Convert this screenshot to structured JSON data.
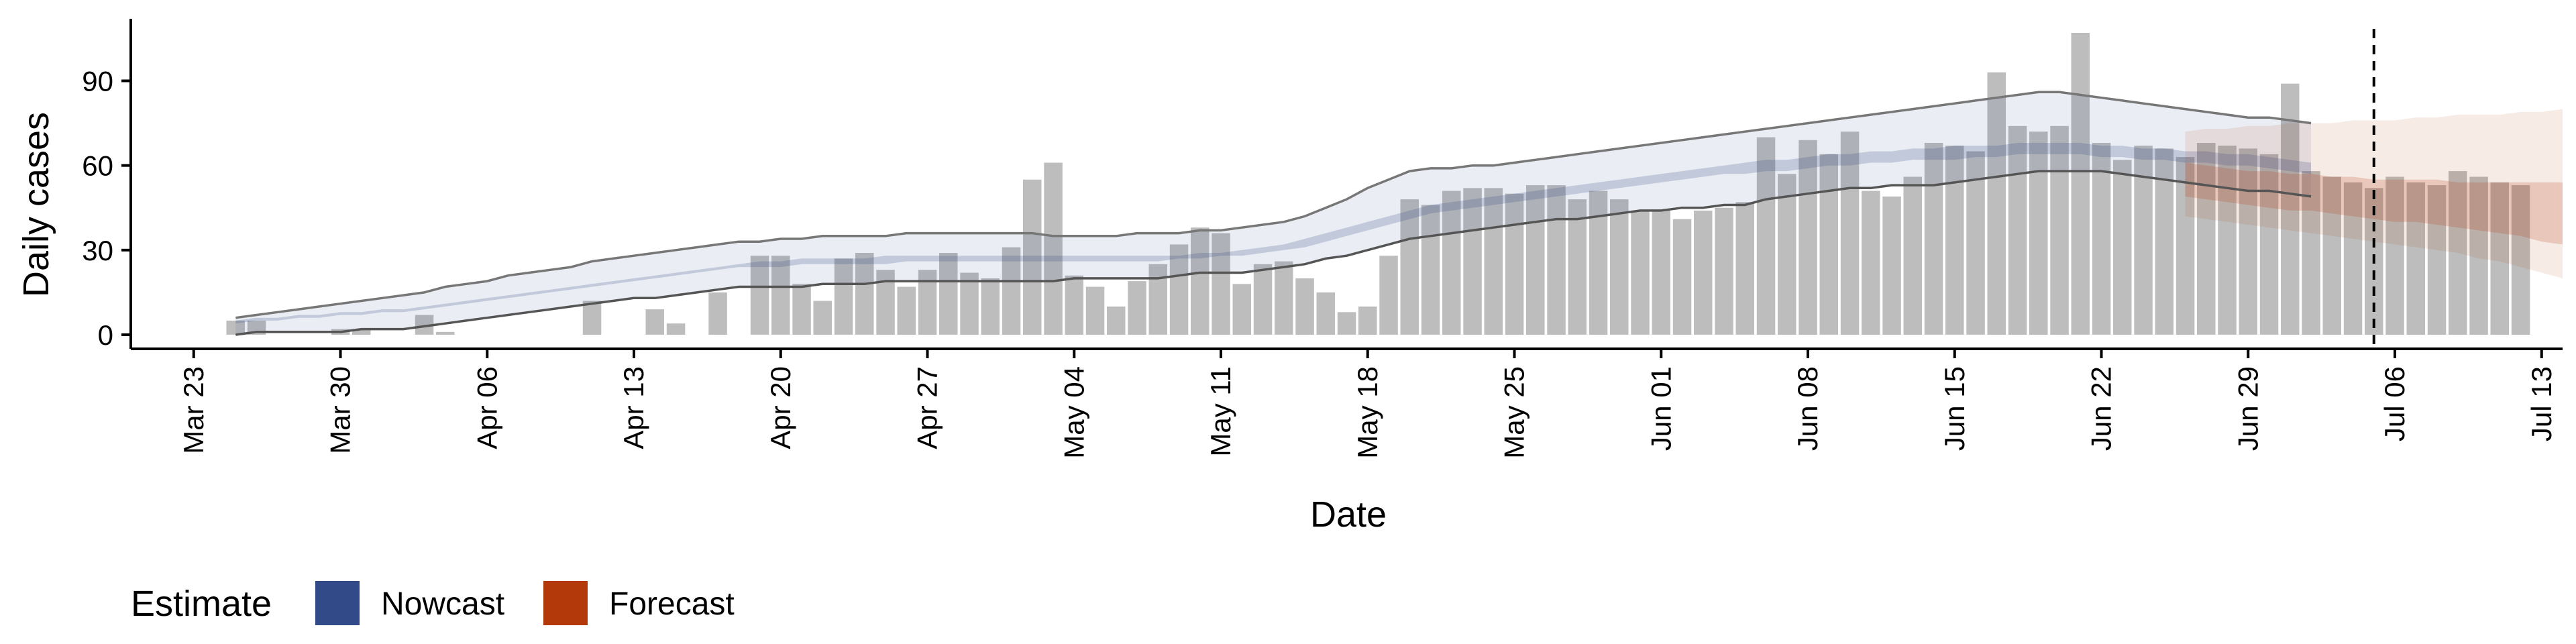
{
  "chart_data": {
    "type": "bar",
    "xlabel": "Date",
    "ylabel": "Daily cases",
    "x_ticks": [
      "Mar 23",
      "Mar 30",
      "Apr 06",
      "Apr 13",
      "Apr 20",
      "Apr 27",
      "May 04",
      "May 11",
      "May 18",
      "May 25",
      "Jun 01",
      "Jun 08",
      "Jun 15",
      "Jun 22",
      "Jun 29",
      "Jul 06",
      "Jul 13"
    ],
    "y_ticks": [
      0,
      30,
      60,
      90
    ],
    "ylim": [
      -5,
      112
    ],
    "xlim": [
      "2020-03-20",
      "2020-07-14"
    ],
    "grid": false,
    "forecast_start_line": "2020-07-05",
    "bars": {
      "start_date": "2020-03-25",
      "color": "#bdbdbd",
      "values": [
        5,
        5,
        0,
        0,
        0,
        2,
        2,
        0,
        0,
        7,
        1,
        0,
        0,
        0,
        0,
        0,
        0,
        12,
        0,
        0,
        9,
        4,
        0,
        15,
        0,
        28,
        28,
        18,
        12,
        27,
        29,
        23,
        17,
        23,
        29,
        22,
        20,
        31,
        55,
        61,
        21,
        17,
        10,
        19,
        25,
        32,
        38,
        36,
        18,
        25,
        26,
        20,
        15,
        8,
        10,
        28,
        48,
        46,
        51,
        52,
        52,
        50,
        53,
        53,
        48,
        51,
        48,
        44,
        44,
        41,
        44,
        45,
        47,
        70,
        57,
        69,
        64,
        72,
        51,
        49,
        56,
        68,
        67,
        65,
        93,
        74,
        72,
        74,
        107,
        68,
        62,
        67,
        66,
        63,
        68,
        67,
        66,
        64,
        89,
        58,
        56,
        54,
        52,
        56,
        54,
        53,
        58,
        56,
        54,
        53
      ]
    },
    "series": [
      {
        "name": "Nowcast",
        "color": "#324a87",
        "start_date": "2020-03-25",
        "outer_lower": [
          0,
          1,
          1,
          1,
          1,
          1,
          2,
          2,
          2,
          3,
          4,
          5,
          6,
          7,
          8,
          9,
          10,
          11,
          12,
          13,
          13,
          14,
          15,
          16,
          17,
          17,
          17,
          17,
          18,
          18,
          18,
          19,
          19,
          19,
          19,
          19,
          19,
          19,
          19,
          19,
          20,
          20,
          20,
          20,
          20,
          21,
          22,
          22,
          22,
          23,
          24,
          25,
          27,
          28,
          30,
          32,
          34,
          35,
          36,
          37,
          38,
          39,
          40,
          41,
          41,
          42,
          43,
          44,
          44,
          45,
          45,
          46,
          46,
          48,
          49,
          50,
          51,
          52,
          52,
          53,
          53,
          53,
          54,
          55,
          56,
          57,
          58,
          58,
          58,
          58,
          57,
          56,
          55,
          54,
          53,
          52,
          51,
          51,
          50,
          49
        ],
        "outer_upper": [
          6,
          7,
          8,
          9,
          10,
          11,
          12,
          13,
          14,
          15,
          17,
          18,
          19,
          21,
          22,
          23,
          24,
          26,
          27,
          28,
          29,
          30,
          31,
          32,
          33,
          33,
          34,
          34,
          35,
          35,
          35,
          35,
          36,
          36,
          36,
          36,
          36,
          36,
          36,
          35,
          35,
          35,
          35,
          36,
          36,
          36,
          37,
          37,
          38,
          39,
          40,
          42,
          45,
          48,
          52,
          55,
          58,
          59,
          59,
          60,
          60,
          61,
          62,
          63,
          64,
          65,
          66,
          67,
          68,
          69,
          70,
          71,
          72,
          73,
          74,
          75,
          76,
          77,
          78,
          79,
          80,
          81,
          82,
          83,
          84,
          85,
          86,
          86,
          85,
          84,
          83,
          82,
          81,
          80,
          79,
          78,
          77,
          77,
          76,
          75
        ],
        "inner_lower": [
          4,
          5,
          5,
          6,
          6,
          7,
          7,
          8,
          8,
          9,
          10,
          11,
          12,
          13,
          14,
          15,
          16,
          17,
          18,
          19,
          20,
          21,
          22,
          23,
          24,
          24,
          24,
          25,
          25,
          25,
          25,
          25,
          26,
          26,
          26,
          26,
          26,
          26,
          26,
          26,
          26,
          26,
          26,
          26,
          26,
          27,
          27,
          28,
          28,
          29,
          30,
          31,
          33,
          35,
          37,
          39,
          41,
          43,
          44,
          45,
          46,
          47,
          48,
          49,
          50,
          51,
          52,
          53,
          54,
          55,
          56,
          57,
          57,
          58,
          58,
          59,
          60,
          60,
          61,
          61,
          62,
          62,
          62,
          63,
          63,
          64,
          64,
          64,
          64,
          63,
          63,
          62,
          62,
          61,
          61,
          60,
          60,
          59,
          58,
          57
        ],
        "inner_upper": [
          5,
          6,
          6,
          7,
          7,
          8,
          8,
          9,
          9,
          10,
          11,
          12,
          13,
          14,
          15,
          16,
          17,
          18,
          19,
          20,
          21,
          22,
          23,
          24,
          25,
          26,
          26,
          27,
          27,
          27,
          27,
          28,
          28,
          28,
          28,
          28,
          28,
          28,
          28,
          28,
          28,
          28,
          28,
          28,
          28,
          28,
          29,
          29,
          30,
          31,
          32,
          34,
          36,
          38,
          40,
          42,
          44,
          46,
          47,
          48,
          49,
          50,
          51,
          52,
          53,
          54,
          55,
          56,
          57,
          58,
          59,
          60,
          61,
          62,
          62,
          63,
          64,
          64,
          65,
          65,
          66,
          66,
          67,
          67,
          67,
          68,
          68,
          68,
          68,
          67,
          67,
          66,
          66,
          65,
          65,
          64,
          64,
          63,
          62,
          61
        ],
        "line_lower": [
          0,
          1,
          1,
          1,
          1,
          1,
          2,
          2,
          2,
          3,
          4,
          5,
          6,
          7,
          8,
          9,
          10,
          11,
          12,
          13,
          13,
          14,
          15,
          16,
          17,
          17,
          17,
          17,
          18,
          18,
          18,
          19,
          19,
          19,
          19,
          19,
          19,
          19,
          19,
          19,
          20,
          20,
          20,
          20,
          20,
          21,
          22,
          22,
          22,
          23,
          24,
          25,
          27,
          28,
          30,
          32,
          34,
          35,
          36,
          37,
          38,
          39,
          40,
          41,
          41,
          42,
          43,
          44,
          44,
          45,
          45,
          46,
          46,
          48,
          49,
          50,
          51,
          52,
          52,
          53,
          53,
          53,
          54,
          55,
          56,
          57,
          58,
          58,
          58,
          58,
          57,
          56,
          55,
          54,
          53,
          52,
          51,
          51,
          50,
          49
        ],
        "line_upper": [
          6,
          7,
          8,
          9,
          10,
          11,
          12,
          13,
          14,
          15,
          17,
          18,
          19,
          21,
          22,
          23,
          24,
          26,
          27,
          28,
          29,
          30,
          31,
          32,
          33,
          33,
          34,
          34,
          35,
          35,
          35,
          35,
          36,
          36,
          36,
          36,
          36,
          36,
          36,
          35,
          35,
          35,
          35,
          36,
          36,
          36,
          37,
          37,
          38,
          39,
          40,
          42,
          45,
          48,
          52,
          55,
          58,
          59,
          59,
          60,
          60,
          61,
          62,
          63,
          64,
          65,
          66,
          67,
          68,
          69,
          70,
          71,
          72,
          73,
          74,
          75,
          76,
          77,
          78,
          79,
          80,
          81,
          82,
          83,
          84,
          85,
          86,
          86,
          85,
          84,
          83,
          82,
          81,
          80,
          79,
          78,
          77,
          77,
          76,
          75
        ]
      },
      {
        "name": "Forecast",
        "color": "#b3390b",
        "start_date": "2020-06-26",
        "outer_lower": [
          42,
          41,
          40,
          39,
          38,
          37,
          36,
          35,
          34,
          33,
          32,
          31,
          30,
          29,
          27,
          26,
          24,
          22,
          20
        ],
        "outer_upper": [
          72,
          73,
          73,
          74,
          74,
          75,
          75,
          75,
          76,
          76,
          76,
          77,
          77,
          78,
          78,
          78,
          79,
          79,
          80
        ],
        "inner_lower": [
          49,
          48,
          47,
          46,
          45,
          44,
          44,
          43,
          42,
          41,
          40,
          40,
          39,
          38,
          37,
          36,
          35,
          33,
          32
        ],
        "inner_upper": [
          61,
          60,
          59,
          58,
          58,
          57,
          57,
          56,
          56,
          55,
          55,
          55,
          55,
          54,
          54,
          54,
          54,
          54,
          54
        ]
      }
    ],
    "legend": {
      "title": "Estimate",
      "position": "bottom-left",
      "entries": [
        {
          "label": "Nowcast",
          "color": "#324a87"
        },
        {
          "label": "Forecast",
          "color": "#b3390b"
        }
      ]
    }
  }
}
